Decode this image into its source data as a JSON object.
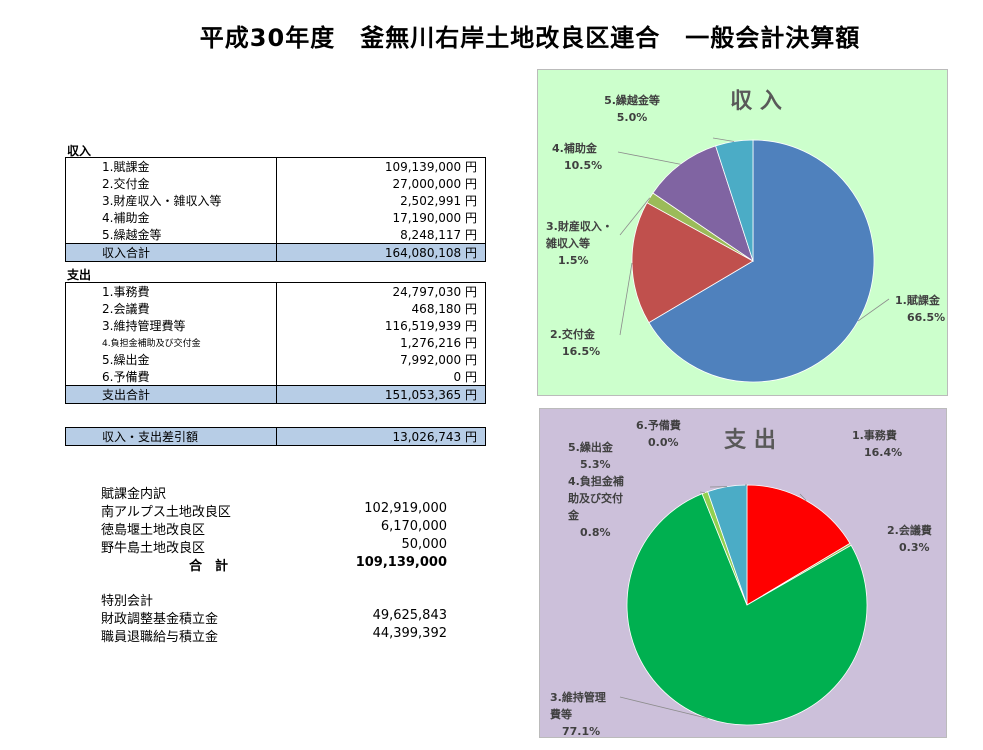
{
  "title": "平成30年度　釜無川右岸土地改良区連合　一般会計決算額",
  "income": {
    "label": "収入",
    "items": [
      {
        "name": "1.賦課金",
        "amount": "109,139,000 円"
      },
      {
        "name": "2.交付金",
        "amount": "27,000,000 円"
      },
      {
        "name": "3.財産収入・雑収入等",
        "amount": "2,502,991 円"
      },
      {
        "name": "4.補助金",
        "amount": "17,190,000 円"
      },
      {
        "name": "5.繰越金等",
        "amount": "8,248,117 円"
      }
    ],
    "total_label": "収入合計",
    "total_amount": "164,080,108 円"
  },
  "expense": {
    "label": "支出",
    "items": [
      {
        "name": "1.事務費",
        "amount": "24,797,030 円"
      },
      {
        "name": "2.会議費",
        "amount": "468,180 円"
      },
      {
        "name": "3.維持管理費等",
        "amount": "116,519,939 円"
      },
      {
        "name": "4.負担金補助及び交付金",
        "amount": "1,276,216 円"
      },
      {
        "name": "5.繰出金",
        "amount": "7,992,000 円"
      },
      {
        "name": "6.予備費",
        "amount": "0 円"
      }
    ],
    "total_label": "支出合計",
    "total_amount": "151,053,365 円"
  },
  "balance": {
    "label": "収入・支出差引額",
    "amount": "13,026,743 円"
  },
  "levy_breakdown": {
    "heading": "賦課金内訳",
    "rows": [
      {
        "name": "南アルプス土地改良区",
        "value": "102,919,000"
      },
      {
        "name": "徳島堰土地改良区",
        "value": "6,170,000"
      },
      {
        "name": "野牛島土地改良区",
        "value": "50,000"
      }
    ],
    "total_label": "合　計",
    "total_value": "109,139,000"
  },
  "special": {
    "heading": "特別会計",
    "rows": [
      {
        "name": "財政調整基金積立金",
        "value": "49,625,843"
      },
      {
        "name": "職員退職給与積立金",
        "value": "44,399,392"
      }
    ]
  },
  "chart_data": [
    {
      "type": "pie",
      "title": "収 入",
      "background": "#ccffcc",
      "slices": [
        {
          "label": "1.賦課金",
          "value": 66.5,
          "pct": "66.5%",
          "color": "#4f81bd"
        },
        {
          "label": "2.交付金",
          "value": 16.5,
          "pct": "16.5%",
          "color": "#c0504d"
        },
        {
          "label": "3.財産収入・雑収入等",
          "value": 1.5,
          "pct": "1.5%",
          "color": "#9bbb59"
        },
        {
          "label": "4.補助金",
          "value": 10.5,
          "pct": "10.5%",
          "color": "#8064a2"
        },
        {
          "label": "5.繰越金等",
          "value": 5.0,
          "pct": "5.0%",
          "color": "#4bacc6"
        }
      ]
    },
    {
      "type": "pie",
      "title": "支 出",
      "background": "#ccc0da",
      "slices": [
        {
          "label": "1.事務費",
          "value": 16.4,
          "pct": "16.4%",
          "color": "#ff0000"
        },
        {
          "label": "2.会議費",
          "value": 0.3,
          "pct": "0.3%",
          "color": "#9bbb59"
        },
        {
          "label": "3.維持管理費等",
          "value": 77.1,
          "pct": "77.1%",
          "color": "#00b050"
        },
        {
          "label": "4.負担金補助及び交付金",
          "value": 0.8,
          "pct": "0.8%",
          "color": "#92d050"
        },
        {
          "label": "5.繰出金",
          "value": 5.3,
          "pct": "5.3%",
          "color": "#4bacc6"
        },
        {
          "label": "6.予備費",
          "value": 0.0,
          "pct": "0.0%",
          "color": "#8064a2"
        }
      ]
    }
  ]
}
